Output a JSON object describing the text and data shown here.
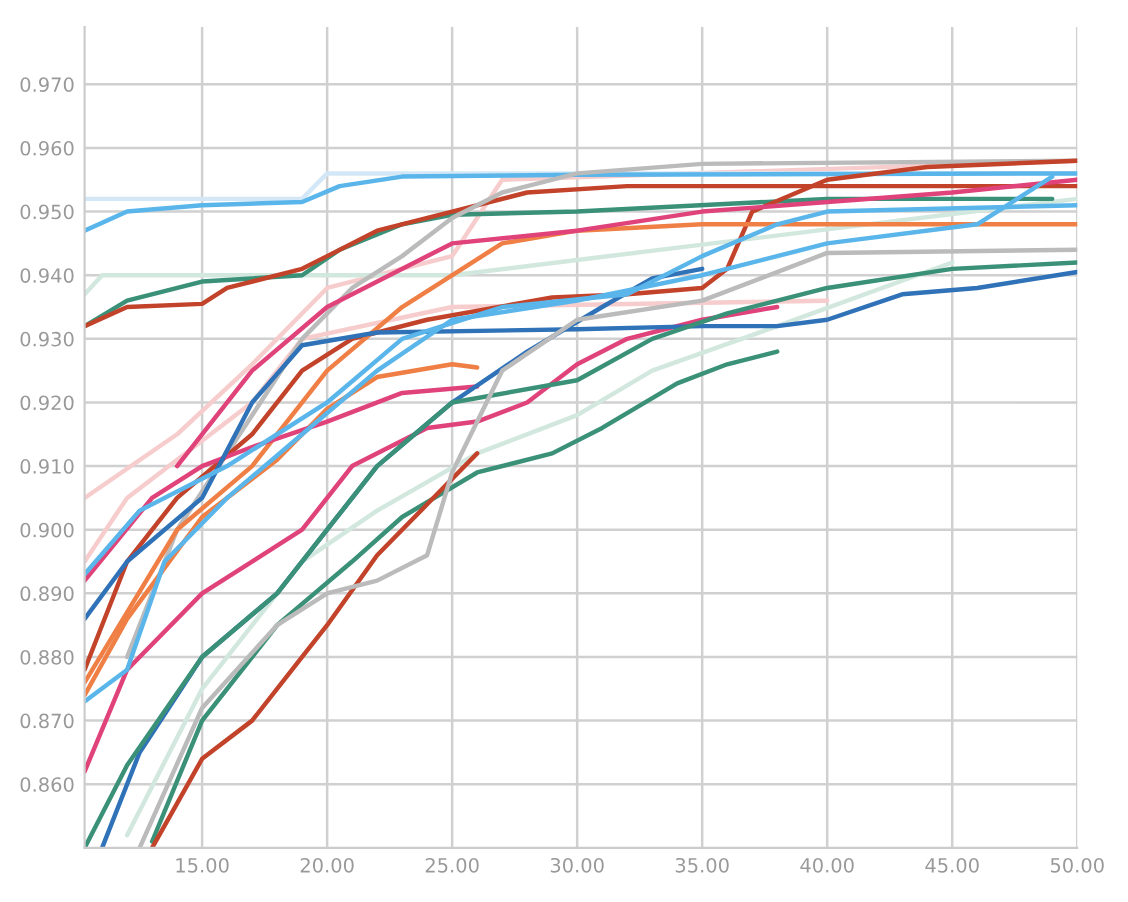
{
  "chart_data": {
    "type": "line",
    "xlim": [
      10.3,
      50
    ],
    "ylim": [
      0.85,
      0.979
    ],
    "grid": true,
    "line_style": "solid",
    "xticks": [
      {
        "value": 15,
        "label": "15.00"
      },
      {
        "value": 20,
        "label": "20.00"
      },
      {
        "value": 25,
        "label": "25.00"
      },
      {
        "value": 30,
        "label": "30.00"
      },
      {
        "value": 35,
        "label": "35.00"
      },
      {
        "value": 40,
        "label": "40.00"
      },
      {
        "value": 45,
        "label": "45.00"
      },
      {
        "value": 50,
        "label": "50.00"
      }
    ],
    "yticks": [
      {
        "value": 0.86,
        "label": "0.860"
      },
      {
        "value": 0.87,
        "label": "0.870"
      },
      {
        "value": 0.88,
        "label": "0.880"
      },
      {
        "value": 0.89,
        "label": "0.890"
      },
      {
        "value": 0.9,
        "label": "0.900"
      },
      {
        "value": 0.91,
        "label": "0.910"
      },
      {
        "value": 0.92,
        "label": "0.920"
      },
      {
        "value": 0.93,
        "label": "0.930"
      },
      {
        "value": 0.94,
        "label": "0.940"
      },
      {
        "value": 0.95,
        "label": "0.950"
      },
      {
        "value": 0.96,
        "label": "0.960"
      },
      {
        "value": 0.97,
        "label": "0.970"
      }
    ],
    "series": [
      {
        "color": "#f6cccc",
        "x": [
          10.3,
          14,
          17,
          20,
          25,
          27,
          50
        ],
        "values": [
          0.905,
          0.915,
          0.926,
          0.938,
          0.943,
          0.955,
          0.958
        ]
      },
      {
        "color": "#d3e7f6",
        "x": [
          10.3,
          19,
          20,
          50
        ],
        "values": [
          0.952,
          0.952,
          0.956,
          0.956
        ]
      },
      {
        "color": "#d2e8df",
        "x": [
          10.3,
          11,
          25,
          50
        ],
        "values": [
          0.937,
          0.94,
          0.94,
          0.952
        ]
      },
      {
        "color": "#f6cccc",
        "x": [
          10.3,
          12,
          17,
          19,
          25,
          40
        ],
        "values": [
          0.895,
          0.905,
          0.92,
          0.93,
          0.935,
          0.936
        ]
      },
      {
        "color": "#d2e8df",
        "x": [
          12,
          15,
          19,
          22,
          26,
          30,
          33,
          38,
          45
        ],
        "values": [
          0.852,
          0.875,
          0.895,
          0.903,
          0.912,
          0.918,
          0.925,
          0.932,
          0.942
        ]
      },
      {
        "color": "#5ab6ea",
        "x": [
          10.3,
          12,
          15,
          19,
          20.5,
          23,
          30,
          50
        ],
        "values": [
          0.947,
          0.95,
          0.951,
          0.9515,
          0.954,
          0.9555,
          0.9558,
          0.956
        ]
      },
      {
        "color": "#3a9178",
        "x": [
          10.3,
          12,
          15,
          19,
          20.5,
          23,
          25,
          30,
          40,
          49
        ],
        "values": [
          0.932,
          0.936,
          0.939,
          0.94,
          0.944,
          0.948,
          0.9495,
          0.95,
          0.952,
          0.952
        ]
      },
      {
        "color": "#c2432a",
        "x": [
          10.3,
          12,
          15,
          16,
          19,
          20,
          22,
          25,
          28,
          32,
          50
        ],
        "values": [
          0.932,
          0.935,
          0.9355,
          0.938,
          0.941,
          0.943,
          0.947,
          0.95,
          0.953,
          0.954,
          0.954
        ]
      },
      {
        "color": "#bbbbbb",
        "x": [
          12,
          14,
          17,
          19,
          21,
          23,
          25,
          27,
          30,
          35,
          50
        ],
        "values": [
          0.88,
          0.9,
          0.918,
          0.93,
          0.938,
          0.943,
          0.949,
          0.953,
          0.956,
          0.9575,
          0.958
        ]
      },
      {
        "color": "#c2432a",
        "x": [
          10.3,
          12,
          14,
          17,
          19,
          21,
          24,
          29,
          32,
          35,
          36,
          37,
          40,
          44,
          50
        ],
        "values": [
          0.878,
          0.895,
          0.905,
          0.915,
          0.925,
          0.93,
          0.933,
          0.9365,
          0.937,
          0.938,
          0.941,
          0.95,
          0.955,
          0.957,
          0.958
        ]
      },
      {
        "color": "#ef7f45",
        "x": [
          10.3,
          12,
          15,
          18,
          20,
          22,
          25,
          26
        ],
        "values": [
          0.874,
          0.886,
          0.902,
          0.911,
          0.919,
          0.924,
          0.926,
          0.9255
        ]
      },
      {
        "color": "#ef7f45",
        "x": [
          10.3,
          14,
          17,
          20,
          23,
          27,
          30,
          35,
          50
        ],
        "values": [
          0.876,
          0.9,
          0.91,
          0.925,
          0.935,
          0.945,
          0.947,
          0.948,
          0.948
        ]
      },
      {
        "color": "#e0427a",
        "x": [
          10.3,
          12,
          15,
          19,
          21,
          24,
          26,
          28,
          30,
          32,
          35,
          38
        ],
        "values": [
          0.862,
          0.878,
          0.89,
          0.9,
          0.91,
          0.916,
          0.917,
          0.92,
          0.926,
          0.93,
          0.933,
          0.935
        ]
      },
      {
        "color": "#e0427a",
        "x": [
          10.3,
          13,
          15,
          17,
          20,
          23,
          26
        ],
        "values": [
          0.892,
          0.905,
          0.91,
          0.913,
          0.917,
          0.9215,
          0.9225
        ]
      },
      {
        "color": "#e0427a",
        "x": [
          14,
          17,
          20,
          25,
          30,
          35,
          45,
          50
        ],
        "values": [
          0.91,
          0.925,
          0.935,
          0.945,
          0.947,
          0.95,
          0.953,
          0.955
        ]
      },
      {
        "color": "#2f72b8",
        "x": [
          10.3,
          12,
          15,
          17,
          19,
          22,
          30,
          35,
          38,
          40,
          43,
          46,
          50
        ],
        "values": [
          0.886,
          0.895,
          0.905,
          0.92,
          0.929,
          0.931,
          0.9315,
          0.932,
          0.932,
          0.933,
          0.937,
          0.938,
          0.9405
        ]
      },
      {
        "color": "#2f72b8",
        "x": [
          11,
          12.5,
          15,
          18,
          20,
          22,
          25,
          28,
          31,
          33,
          35
        ],
        "values": [
          0.85,
          0.865,
          0.88,
          0.89,
          0.9,
          0.91,
          0.92,
          0.928,
          0.935,
          0.9395,
          0.941
        ]
      },
      {
        "color": "#3a9178",
        "x": [
          13,
          15,
          18,
          21,
          23,
          26,
          29,
          31,
          34,
          36,
          38
        ],
        "values": [
          0.851,
          0.87,
          0.885,
          0.895,
          0.902,
          0.909,
          0.912,
          0.916,
          0.923,
          0.926,
          0.928
        ]
      },
      {
        "color": "#3a9178",
        "x": [
          10.3,
          12,
          15,
          18,
          20,
          22,
          25,
          30,
          33,
          36,
          40,
          45,
          50
        ],
        "values": [
          0.85,
          0.863,
          0.88,
          0.89,
          0.9,
          0.91,
          0.92,
          0.9235,
          0.93,
          0.934,
          0.938,
          0.941,
          0.942
        ]
      },
      {
        "color": "#c2432a",
        "x": [
          13,
          14,
          15,
          17,
          19,
          20,
          22,
          24,
          26
        ],
        "values": [
          0.85,
          0.857,
          0.864,
          0.87,
          0.88,
          0.885,
          0.896,
          0.904,
          0.912
        ]
      },
      {
        "color": "#bbbbbb",
        "x": [
          12.5,
          15,
          18,
          20,
          22,
          24,
          25,
          27,
          30,
          35,
          40,
          50
        ],
        "values": [
          0.85,
          0.872,
          0.885,
          0.89,
          0.892,
          0.896,
          0.909,
          0.925,
          0.933,
          0.936,
          0.9435,
          0.944
        ]
      },
      {
        "color": "#5ab6ea",
        "x": [
          10.3,
          12,
          13.5,
          16,
          19,
          22,
          25,
          30,
          35,
          40,
          46,
          49
        ],
        "values": [
          0.873,
          0.878,
          0.895,
          0.905,
          0.915,
          0.925,
          0.933,
          0.936,
          0.94,
          0.945,
          0.948,
          0.9555
        ]
      },
      {
        "color": "#5ab6ea",
        "x": [
          10.3,
          12.5,
          16,
          20,
          23,
          27,
          32,
          35,
          38,
          40,
          50
        ],
        "values": [
          0.893,
          0.903,
          0.91,
          0.92,
          0.93,
          0.935,
          0.937,
          0.943,
          0.948,
          0.95,
          0.951
        ]
      }
    ]
  }
}
